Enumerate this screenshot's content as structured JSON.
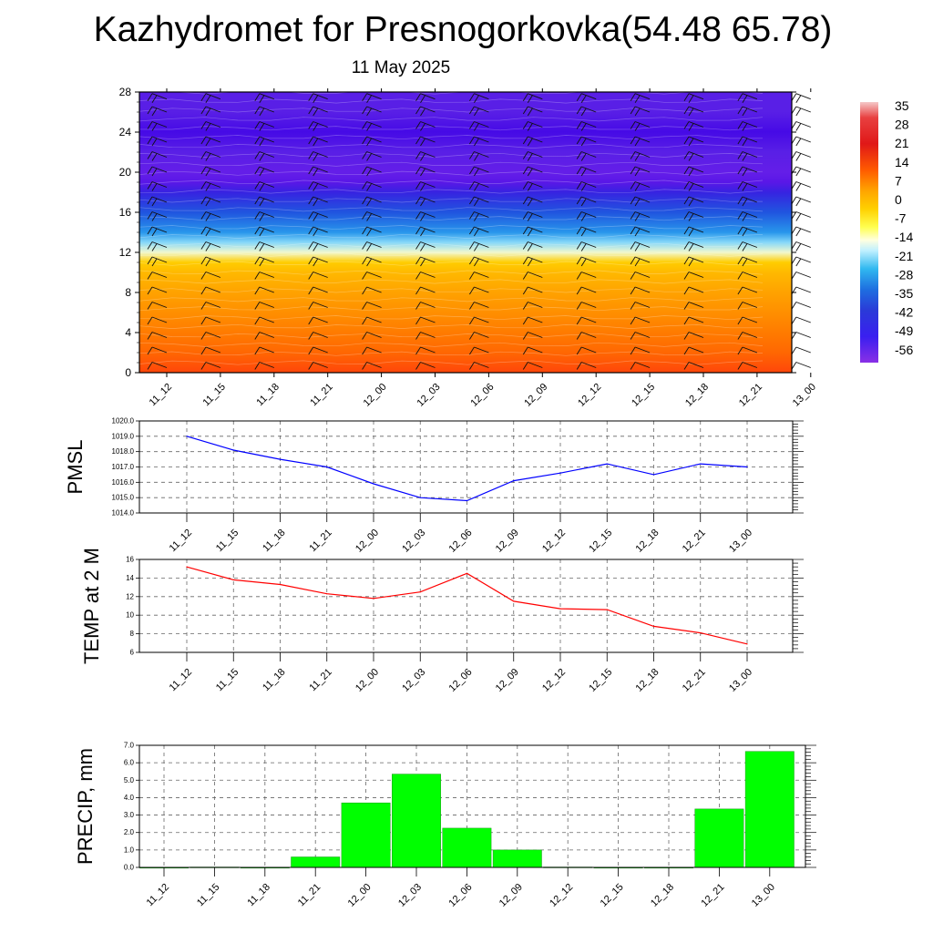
{
  "title": "Kazhydromet for Presnogorkovka(54.48 65.78)",
  "date": "11 May 2025",
  "time_labels": [
    "11_12",
    "11_15",
    "11_18",
    "11_21",
    "12_00",
    "12_03",
    "12_06",
    "12_09",
    "12_12",
    "12_15",
    "12_18",
    "12_21",
    "13_00"
  ],
  "chart_data": [
    {
      "type": "heatmap",
      "name": "temperature-wind-cross-section",
      "x": [
        "11_12",
        "11_15",
        "11_18",
        "11_21",
        "12_00",
        "12_03",
        "12_06",
        "12_09",
        "12_12",
        "12_15",
        "12_18",
        "12_21",
        "13_00"
      ],
      "y_ticks": [
        "0",
        "4",
        "8",
        "12",
        "16",
        "20",
        "24",
        "28"
      ],
      "ylim": [
        0,
        28
      ],
      "colorbar_labels": [
        "35",
        "28",
        "21",
        "14",
        "7",
        "0",
        "-7",
        "-14",
        "-21",
        "-28",
        "-35",
        "-42",
        "-49",
        "-56"
      ],
      "profile_z": [
        0,
        2,
        4,
        6,
        8,
        10,
        11,
        12,
        13,
        14,
        16,
        18,
        19,
        20,
        22,
        24,
        26,
        28
      ],
      "profile_t": [
        24,
        19,
        16,
        13,
        10,
        6,
        2,
        -12,
        -18,
        -28,
        -40,
        -52,
        -62,
        -60,
        -58,
        -66,
        -58,
        -58
      ],
      "wind_barbs": true,
      "colors": {
        "high": "#ff3000",
        "mid": "#ffff40",
        "low": "#6020e0"
      }
    },
    {
      "type": "line",
      "name": "pmsl",
      "ylabel": "PMSL",
      "x": [
        "11_12",
        "11_15",
        "11_18",
        "11_21",
        "12_00",
        "12_03",
        "12_06",
        "12_09",
        "12_12",
        "12_15",
        "12_18",
        "12_21",
        "13_00"
      ],
      "values": [
        1019.0,
        1018.1,
        1017.5,
        1017.0,
        1015.9,
        1015.0,
        1014.8,
        1016.1,
        1016.6,
        1017.2,
        1016.5,
        1017.2,
        1017.0
      ],
      "y_ticks": [
        "1014.0",
        "1015.0",
        "1016.0",
        "1017.0",
        "1018.0",
        "1019.0",
        "1020.0"
      ],
      "ylim": [
        1014.0,
        1020.0
      ],
      "color": "#0000ff",
      "grid": true
    },
    {
      "type": "line",
      "name": "temp-2m",
      "ylabel": "TEMP at 2 M",
      "x": [
        "11_12",
        "11_15",
        "11_18",
        "11_21",
        "12_00",
        "12_03",
        "12_06",
        "12_09",
        "12_12",
        "12_15",
        "12_18",
        "12_21",
        "13_00"
      ],
      "values": [
        15.2,
        13.8,
        13.3,
        12.3,
        11.8,
        12.5,
        14.5,
        11.5,
        10.7,
        10.6,
        8.8,
        8.1,
        6.9
      ],
      "y_ticks": [
        "6",
        "8",
        "10",
        "12",
        "14",
        "16"
      ],
      "ylim": [
        6,
        16
      ],
      "color": "#ff0000",
      "grid": true
    },
    {
      "type": "bar",
      "name": "precipitation",
      "ylabel": "PRECIP, mm",
      "categories": [
        "11_12",
        "11_15",
        "11_18",
        "11_21",
        "12_00",
        "12_03",
        "12_06",
        "12_09",
        "12_12",
        "12_15",
        "12_18",
        "12_21",
        "13_00"
      ],
      "values": [
        0.0,
        0.02,
        0.0,
        0.6,
        3.7,
        5.35,
        2.25,
        1.0,
        0.02,
        0.0,
        0.0,
        3.35,
        6.65
      ],
      "y_ticks": [
        "0.0",
        "1.0",
        "2.0",
        "3.0",
        "4.0",
        "5.0",
        "6.0",
        "7.0"
      ],
      "ylim": [
        0,
        7.0
      ],
      "color": "#00ff00",
      "grid": true
    }
  ]
}
